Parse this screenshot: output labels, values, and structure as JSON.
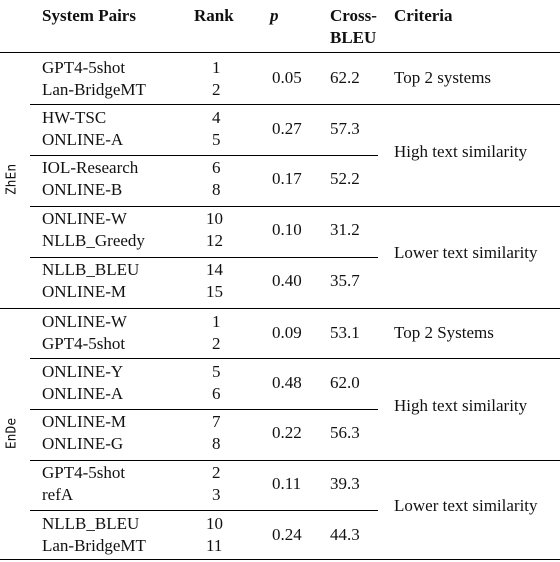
{
  "headers": {
    "system_pairs": "System Pairs",
    "rank": "Rank",
    "p": "p",
    "cross_bleu_1": "Cross-",
    "cross_bleu_2": "BLEU",
    "criteria": "Criteria"
  },
  "sections": [
    {
      "label": "ZhEn",
      "pairs": [
        {
          "systems": [
            "GPT4-5shot",
            "Lan-BridgeMT"
          ],
          "ranks": [
            "1",
            "2"
          ],
          "p": "0.05",
          "bleu": "62.2"
        },
        {
          "systems": [
            "HW-TSC",
            "ONLINE-A"
          ],
          "ranks": [
            "4",
            "5"
          ],
          "p": "0.27",
          "bleu": "57.3"
        },
        {
          "systems": [
            "IOL-Research",
            "ONLINE-B"
          ],
          "ranks": [
            "6",
            "8"
          ],
          "p": "0.17",
          "bleu": "52.2"
        },
        {
          "systems": [
            "ONLINE-W",
            "NLLB_Greedy"
          ],
          "ranks": [
            "10",
            "12"
          ],
          "p": "0.10",
          "bleu": "31.2"
        },
        {
          "systems": [
            "NLLB_BLEU",
            "ONLINE-M"
          ],
          "ranks": [
            "14",
            "15"
          ],
          "p": "0.40",
          "bleu": "35.7"
        }
      ],
      "criteria": [
        "Top 2 systems",
        "High text similarity",
        "Lower text similarity"
      ]
    },
    {
      "label": "EnDe",
      "pairs": [
        {
          "systems": [
            "ONLINE-W",
            "GPT4-5shot"
          ],
          "ranks": [
            "1",
            "2"
          ],
          "p": "0.09",
          "bleu": "53.1"
        },
        {
          "systems": [
            "ONLINE-Y",
            "ONLINE-A"
          ],
          "ranks": [
            "5",
            "6"
          ],
          "p": "0.48",
          "bleu": "62.0"
        },
        {
          "systems": [
            "ONLINE-M",
            "ONLINE-G"
          ],
          "ranks": [
            "7",
            "8"
          ],
          "p": "0.22",
          "bleu": "56.3"
        },
        {
          "systems": [
            "GPT4-5shot",
            "refA"
          ],
          "ranks": [
            "2",
            "3"
          ],
          "p": "0.11",
          "bleu": "39.3"
        },
        {
          "systems": [
            "NLLB_BLEU",
            "Lan-BridgeMT"
          ],
          "ranks": [
            "10",
            "11"
          ],
          "p": "0.24",
          "bleu": "44.3"
        }
      ],
      "criteria": [
        "Top 2 Systems",
        "High text similarity",
        "Lower text similarity"
      ]
    }
  ]
}
